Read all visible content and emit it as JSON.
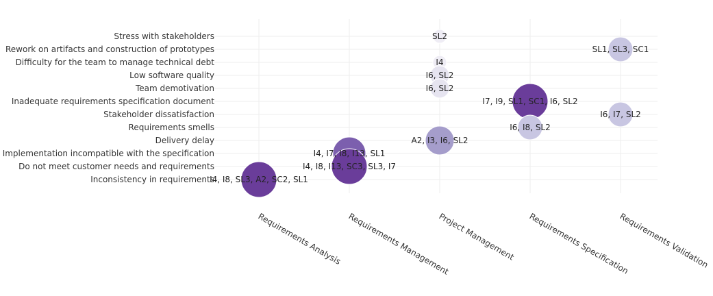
{
  "chart_data": {
    "type": "scatter",
    "title": "",
    "xlabel": "",
    "ylabel": "",
    "categories_x": [
      "Requirements Analysis",
      "Requirements Management",
      "Project Management",
      "Requirements Specification",
      "Requirements Validation"
    ],
    "categories_y": [
      "Stress with stakeholders",
      "Rework on artifacts and construction of prototypes",
      "Difficulty for the team to manage technical debt",
      "Low software quality",
      "Team demotivation",
      "Inadequate requirements specification document",
      "Stakeholder dissatisfaction",
      "Requirements smells",
      "Delivery delay",
      "Implementation incompatible with the specification",
      "Do not meet customer needs and requirements",
      "Inconsistency in requirements"
    ],
    "points": [
      {
        "x": "Project Management",
        "y": "Stress with stakeholders",
        "label": "SL2",
        "count": 1
      },
      {
        "x": "Requirements Validation",
        "y": "Rework on artifacts and construction of prototypes",
        "label": "SL1,  SL3, SC1",
        "count": 3
      },
      {
        "x": "Project Management",
        "y": "Difficulty for the team to manage technical debt",
        "label": "I4",
        "count": 1
      },
      {
        "x": "Project Management",
        "y": "Low software quality",
        "label": "I6, SL2",
        "count": 2
      },
      {
        "x": "Project Management",
        "y": "Team demotivation",
        "label": "I6, SL2",
        "count": 2
      },
      {
        "x": "Requirements Specification",
        "y": "Inadequate requirements specification document",
        "label": "I7, I9, SL1, SC1, I6, SL2",
        "count": 6
      },
      {
        "x": "Requirements Validation",
        "y": "Stakeholder dissatisfaction",
        "label": "I6, I7, SL2",
        "count": 3
      },
      {
        "x": "Requirements Specification",
        "y": "Requirements smells",
        "label": "I6, I8, SL2",
        "count": 3
      },
      {
        "x": "Project Management",
        "y": "Delivery delay",
        "label": "A2, I3, I6, SL2",
        "count": 4
      },
      {
        "x": "Requirements Management",
        "y": "Implementation incompatible with the specification",
        "label": "I4, I7, I8, I13, SL1",
        "count": 5
      },
      {
        "x": "Requirements Management",
        "y": "Do not meet customer needs and requirements",
        "label": "I4, I8, I13, SC3, SL3, I7",
        "count": 6
      },
      {
        "x": "Requirements Analysis",
        "y": "Inconsistency in requirements",
        "label": "I4, I8, SL3, A2, SC2, SL1",
        "count": 6
      }
    ],
    "colors": {
      "1": "#efedf5",
      "2": "#e6e4f0",
      "3": "#c8c6e2",
      "4": "#a59dcb",
      "5": "#7c5fae",
      "6": "#6a3d9a"
    },
    "grid": true,
    "legend": "none"
  }
}
